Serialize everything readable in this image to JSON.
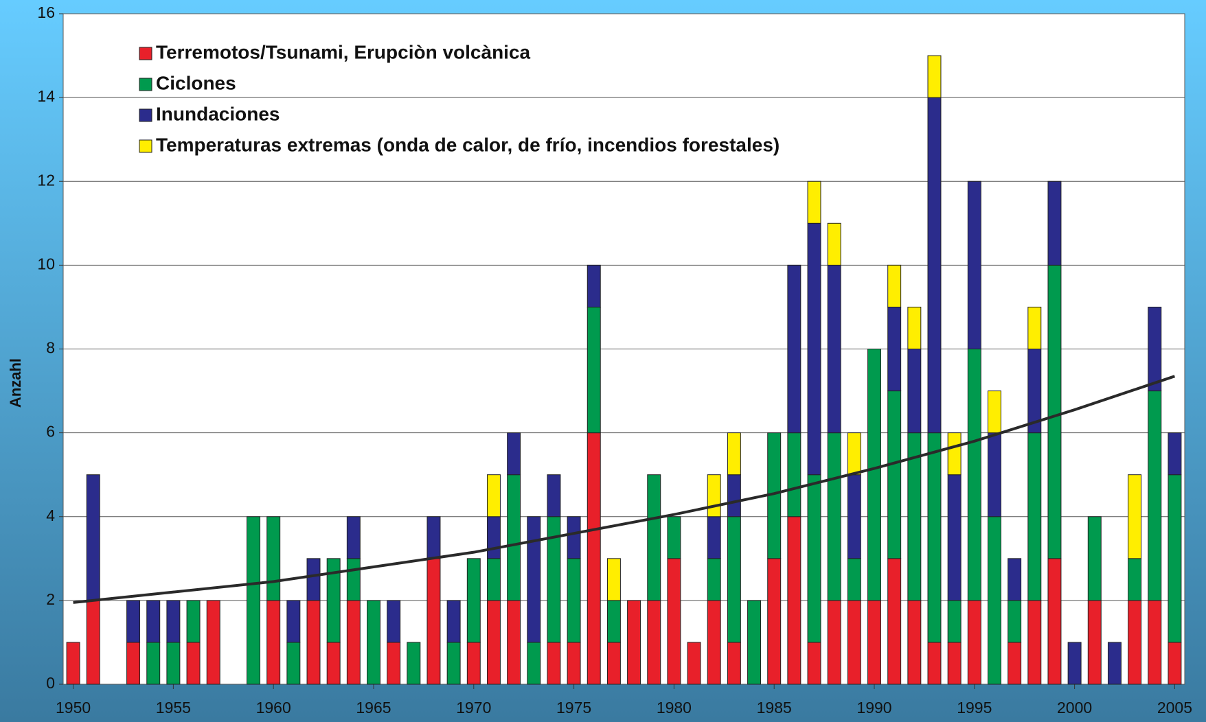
{
  "chart_data": {
    "type": "bar",
    "stacked": true,
    "y_label": "Anzahl",
    "x": [
      1950,
      1951,
      1952,
      1953,
      1954,
      1955,
      1956,
      1957,
      1958,
      1959,
      1960,
      1961,
      1962,
      1963,
      1964,
      1965,
      1966,
      1967,
      1968,
      1969,
      1970,
      1971,
      1972,
      1973,
      1974,
      1975,
      1976,
      1977,
      1978,
      1979,
      1980,
      1981,
      1982,
      1983,
      1984,
      1985,
      1986,
      1987,
      1988,
      1989,
      1990,
      1991,
      1992,
      1993,
      1994,
      1995,
      1996,
      1997,
      1998,
      1999,
      2000,
      2001,
      2002,
      2003,
      2004,
      2005
    ],
    "xlim": [
      1949.5,
      2005.5
    ],
    "xticks": [
      1950,
      1955,
      1960,
      1965,
      1970,
      1975,
      1980,
      1985,
      1990,
      1995,
      2000,
      2005
    ],
    "ylim": [
      0,
      16
    ],
    "yticks": [
      0,
      2,
      4,
      6,
      8,
      10,
      12,
      14,
      16
    ],
    "grid": true,
    "legend": "top-left",
    "series": [
      {
        "name": "Terremotos/Tsunami, Erupciòn volcànica",
        "color": "#e8202a",
        "values": [
          1,
          2,
          0,
          1,
          0,
          0,
          1,
          2,
          0,
          0,
          2,
          0,
          2,
          1,
          2,
          0,
          1,
          0,
          3,
          0,
          1,
          2,
          2,
          0,
          1,
          1,
          6,
          1,
          2,
          2,
          3,
          1,
          2,
          1,
          0,
          3,
          4,
          1,
          2,
          2,
          2,
          3,
          2,
          1,
          1,
          2,
          0,
          1,
          2,
          3,
          0,
          2,
          0,
          2,
          2,
          1
        ]
      },
      {
        "name": "Ciclones",
        "color": "#009a4e",
        "values": [
          0,
          0,
          0,
          0,
          1,
          1,
          1,
          0,
          0,
          4,
          2,
          1,
          0,
          2,
          1,
          2,
          0,
          1,
          0,
          1,
          2,
          1,
          3,
          1,
          3,
          2,
          3,
          1,
          0,
          3,
          1,
          0,
          1,
          3,
          2,
          3,
          2,
          4,
          4,
          1,
          6,
          4,
          4,
          5,
          1,
          6,
          4,
          1,
          4,
          7,
          0,
          2,
          0,
          1,
          5,
          4
        ]
      },
      {
        "name": "Inundaciones",
        "color": "#2b2c8c",
        "values": [
          0,
          3,
          0,
          1,
          1,
          1,
          0,
          0,
          0,
          0,
          0,
          1,
          1,
          0,
          1,
          0,
          1,
          0,
          1,
          1,
          0,
          1,
          1,
          3,
          1,
          1,
          1,
          0,
          0,
          0,
          0,
          0,
          1,
          1,
          0,
          0,
          4,
          6,
          4,
          2,
          0,
          2,
          2,
          8,
          3,
          4,
          2,
          1,
          2,
          2,
          1,
          0,
          1,
          0,
          2,
          1
        ]
      },
      {
        "name": "Temperaturas extremas (onda de calor, de frío, incendios forestales)",
        "color": "#ffee00",
        "values": [
          0,
          0,
          0,
          0,
          0,
          0,
          0,
          0,
          0,
          0,
          0,
          0,
          0,
          0,
          0,
          0,
          0,
          0,
          0,
          0,
          0,
          1,
          0,
          0,
          0,
          0,
          0,
          1,
          0,
          0,
          0,
          0,
          1,
          1,
          0,
          0,
          0,
          1,
          1,
          1,
          0,
          1,
          1,
          1,
          1,
          0,
          1,
          0,
          1,
          0,
          0,
          0,
          0,
          2,
          0,
          0
        ]
      }
    ],
    "trend": {
      "color": "#2a2a2a",
      "x": [
        1950,
        1955,
        1960,
        1965,
        1970,
        1975,
        1980,
        1985,
        1990,
        1995,
        2000,
        2005
      ],
      "values": [
        1.95,
        2.2,
        2.45,
        2.8,
        3.15,
        3.6,
        4.05,
        4.55,
        5.15,
        5.8,
        6.55,
        7.35
      ]
    }
  }
}
